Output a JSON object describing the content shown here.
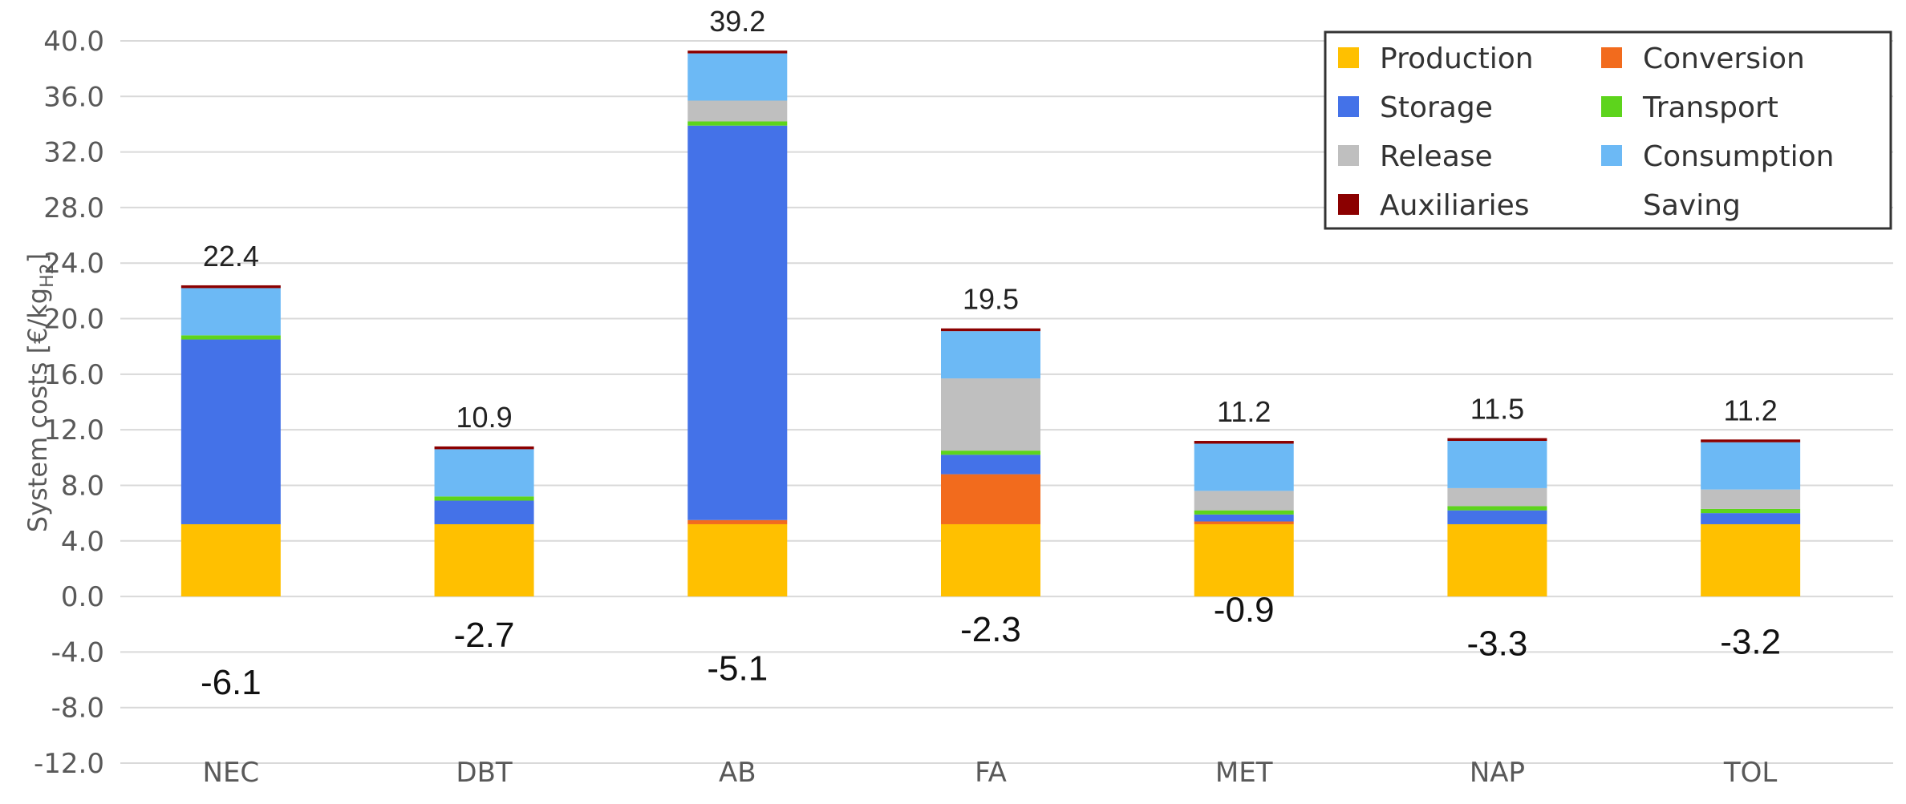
{
  "chart_data": {
    "type": "bar",
    "stacked": true,
    "ylabel": "System costs [€/kg",
    "ylabel_sub": "H2",
    "ylabel_end": "]",
    "ylim": [
      -12,
      40
    ],
    "yticks": [
      -12,
      -8,
      -4,
      0,
      4,
      8,
      12,
      16,
      20,
      24,
      28,
      32,
      36,
      40
    ],
    "categories": [
      "NEC",
      "DBT",
      "AB",
      "FA",
      "MET",
      "NAP",
      "TOL"
    ],
    "series": [
      {
        "name": "Production",
        "color": "#FFC000",
        "values": [
          5.2,
          5.2,
          5.2,
          5.2,
          5.2,
          5.2,
          5.2
        ]
      },
      {
        "name": "Conversion",
        "color": "#F26B1D",
        "values": [
          0.0,
          0.0,
          0.3,
          3.6,
          0.2,
          0.0,
          0.0
        ]
      },
      {
        "name": "Storage",
        "color": "#4472E8",
        "values": [
          13.3,
          1.7,
          28.4,
          1.4,
          0.5,
          1.0,
          0.8
        ]
      },
      {
        "name": "Transport",
        "color": "#5DD41C",
        "values": [
          0.3,
          0.3,
          0.3,
          0.3,
          0.3,
          0.3,
          0.3
        ]
      },
      {
        "name": "Release",
        "color": "#BFBFBF",
        "values": [
          0.0,
          0.0,
          1.5,
          5.2,
          1.4,
          1.3,
          1.4
        ]
      },
      {
        "name": "Consumption",
        "color": "#6CB9F5",
        "values": [
          3.4,
          3.4,
          3.4,
          3.4,
          3.4,
          3.4,
          3.4
        ]
      },
      {
        "name": "Auxiliaries",
        "color": "#8B0000",
        "values": [
          0.2,
          0.2,
          0.2,
          0.2,
          0.2,
          0.2,
          0.2
        ]
      }
    ],
    "totals": [
      "22.4",
      "10.9",
      "39.2",
      "19.5",
      "11.2",
      "11.5",
      "11.2"
    ],
    "savings": [
      -6.1,
      -2.7,
      -5.1,
      -2.3,
      -0.9,
      -3.3,
      -3.2
    ],
    "savings_labels": [
      "-6.1",
      "-2.7",
      "-5.1",
      "-2.3",
      "-0.9",
      "-3.3",
      "-3.2"
    ],
    "saving_legend": "Saving",
    "legend_position": "top-right",
    "grid": true
  }
}
